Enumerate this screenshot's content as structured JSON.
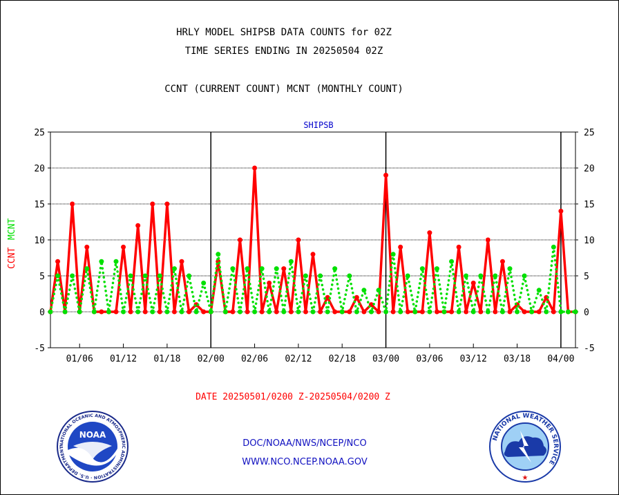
{
  "titles": {
    "line1": "HRLY MODEL SHIPSB DATA COUNTS for 02Z",
    "line2": "TIME SERIES ENDING IN 20250504 02Z",
    "line3": "CCNT (CURRENT COUNT) MCNT (MONTHLY COUNT)"
  },
  "date_range": "DATE 20250501/0200 Z-20250504/0200 Z",
  "footer": {
    "line1": "DOC/NOAA/NWS/NCEP/NCO",
    "line2": "WWW.NCO.NCEP.NOAA.GOV"
  },
  "logos": {
    "noaa_text": "NOAA",
    "noaa_ring_text": "NATIONAL OCEANIC AND ATMOSPHERIC ADMINISTRATION · U.S. DEPARTMENT OF COMMERCE ·",
    "nws_ring_text": "NATIONAL WEATHER SERVICE"
  },
  "colors": {
    "ccnt": "#ff0000",
    "mcnt": "#00e000",
    "panel_title": "#0000cc",
    "footer": "#1010c0"
  },
  "chart_data": {
    "type": "line",
    "title": "SHIPSB",
    "ylabel_ccnt": "CCNT",
    "ylabel_mcnt": "MCNT",
    "ylim": [
      -5,
      25
    ],
    "yticks": [
      -5,
      0,
      5,
      10,
      15,
      20,
      25
    ],
    "xlim": [
      0,
      72
    ],
    "x_tick_labels": [
      {
        "x": 4,
        "label": "01/06"
      },
      {
        "x": 10,
        "label": "01/12"
      },
      {
        "x": 16,
        "label": "01/18"
      },
      {
        "x": 22,
        "label": "02/00"
      },
      {
        "x": 28,
        "label": "02/06"
      },
      {
        "x": 34,
        "label": "02/12"
      },
      {
        "x": 40,
        "label": "02/18"
      },
      {
        "x": 46,
        "label": "03/00"
      },
      {
        "x": 52,
        "label": "03/06"
      },
      {
        "x": 58,
        "label": "03/12"
      },
      {
        "x": 64,
        "label": "03/18"
      },
      {
        "x": 70,
        "label": "04/00"
      }
    ],
    "day_boundaries": [
      22,
      46,
      70
    ],
    "grid": true,
    "series": [
      {
        "name": "CCNT",
        "style": "solid",
        "color": "#ff0000",
        "x": [
          0,
          1,
          2,
          3,
          4,
          5,
          6,
          7,
          8,
          9,
          10,
          11,
          12,
          13,
          14,
          15,
          16,
          17,
          18,
          19,
          20,
          21,
          22,
          23,
          24,
          25,
          26,
          27,
          28,
          29,
          30,
          31,
          32,
          33,
          34,
          35,
          36,
          37,
          38,
          39,
          40,
          41,
          42,
          43,
          44,
          45,
          46,
          47,
          48,
          49,
          50,
          51,
          52,
          53,
          54,
          55,
          56,
          57,
          58,
          59,
          60,
          61,
          62,
          63,
          64,
          65,
          66,
          67,
          68,
          69,
          70,
          71,
          72
        ],
        "values": [
          0,
          7,
          0,
          15,
          0,
          9,
          0,
          0,
          0,
          0,
          9,
          0,
          12,
          0,
          15,
          0,
          15,
          0,
          7,
          0,
          1,
          0,
          0,
          7,
          0,
          0,
          10,
          0,
          20,
          0,
          4,
          0,
          6,
          0,
          10,
          0,
          8,
          0,
          2,
          0,
          0,
          0,
          2,
          0,
          1,
          0,
          19,
          0,
          9,
          0,
          0,
          0,
          11,
          0,
          0,
          0,
          9,
          0,
          4,
          0,
          10,
          0,
          7,
          0,
          1,
          0,
          0,
          0,
          2,
          0,
          14,
          0,
          0
        ]
      },
      {
        "name": "MCNT",
        "style": "dotted",
        "color": "#00e000",
        "x": [
          0,
          1,
          2,
          3,
          4,
          5,
          6,
          7,
          8,
          9,
          10,
          11,
          12,
          13,
          14,
          15,
          16,
          17,
          18,
          19,
          20,
          21,
          22,
          23,
          24,
          25,
          26,
          27,
          28,
          29,
          30,
          31,
          32,
          33,
          34,
          35,
          36,
          37,
          38,
          39,
          40,
          41,
          42,
          43,
          44,
          45,
          46,
          47,
          48,
          49,
          50,
          51,
          52,
          53,
          54,
          55,
          56,
          57,
          58,
          59,
          60,
          61,
          62,
          63,
          64,
          65,
          66,
          67,
          68,
          69,
          70,
          71,
          72
        ],
        "values": [
          0,
          5,
          0,
          5,
          0,
          6,
          0,
          7,
          0,
          7,
          0,
          5,
          0,
          5,
          0,
          5,
          0,
          6,
          0,
          5,
          0,
          4,
          0,
          8,
          0,
          6,
          0,
          6,
          0,
          6,
          0,
          6,
          0,
          7,
          0,
          5,
          0,
          5,
          0,
          6,
          0,
          5,
          0,
          3,
          0,
          3,
          0,
          8,
          0,
          5,
          0,
          6,
          0,
          6,
          0,
          7,
          0,
          5,
          0,
          5,
          0,
          5,
          0,
          6,
          0,
          5,
          0,
          3,
          0,
          9,
          0,
          0,
          0
        ]
      }
    ]
  }
}
